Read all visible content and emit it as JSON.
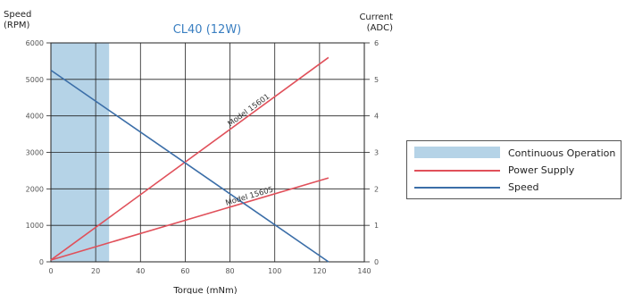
{
  "chart_data": {
    "type": "line",
    "title": "CL40 (12W)",
    "xlabel": "Torque (mNm)",
    "y_left_label_line1": "Speed",
    "y_left_label_line2": "(RPM)",
    "y_right_label_line1": "Current",
    "y_right_label_line2": "(ADC)",
    "xlim": [
      0,
      140
    ],
    "ylim_left": [
      0,
      6000
    ],
    "ylim_right": [
      0,
      6
    ],
    "x_ticks": [
      0,
      20,
      40,
      60,
      80,
      100,
      120,
      140
    ],
    "y_left_ticks": [
      0,
      1000,
      2000,
      3000,
      4000,
      5000,
      6000
    ],
    "y_right_ticks": [
      0,
      1,
      2,
      3,
      4,
      5,
      6
    ],
    "grid": true,
    "continuous_operation": {
      "x_start": 0,
      "x_end": 26
    },
    "series": [
      {
        "name": "Model 15601",
        "kind": "current",
        "axis": "right",
        "color": "#e0505a",
        "x": [
          0,
          124
        ],
        "y": [
          0.05,
          5.6
        ]
      },
      {
        "name": "Model 15605",
        "kind": "current",
        "axis": "right",
        "color": "#e0505a",
        "x": [
          0,
          124
        ],
        "y": [
          0.05,
          2.3
        ]
      },
      {
        "name": "Speed",
        "kind": "speed",
        "axis": "left",
        "color": "#3b6ea8",
        "x": [
          0,
          124
        ],
        "y": [
          5250,
          0
        ]
      }
    ],
    "legend_position": "right",
    "legend": [
      {
        "label": "Continuous Operation",
        "kind": "area",
        "color": "#b5d3e7"
      },
      {
        "label": "Power Supply",
        "kind": "line",
        "color": "#e0505a"
      },
      {
        "label": "Speed",
        "kind": "line",
        "color": "#3b6ea8"
      }
    ]
  }
}
